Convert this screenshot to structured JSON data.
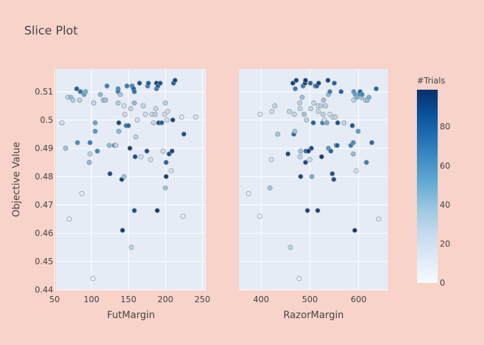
{
  "chart_data": {
    "type": "scatter",
    "title": "Slice Plot",
    "ylabel": "Objective Value",
    "ylim": [
      0.44,
      0.518
    ],
    "yticks": [
      0.44,
      0.45,
      0.46,
      0.47,
      0.48,
      0.49,
      0.5,
      0.51
    ],
    "ytick_labels": [
      "0.44",
      "0.45",
      "0.46",
      "0.47",
      "0.48",
      "0.49",
      "0.5",
      "0.51"
    ],
    "colorbar": {
      "title": "#Trials",
      "range": [
        0,
        99
      ],
      "ticks": [
        0,
        20,
        40,
        60,
        80
      ],
      "tick_labels": [
        "0",
        "20",
        "40",
        "60",
        "80"
      ]
    },
    "panels": [
      {
        "name": "FutMargin",
        "xlabel": "FutMargin",
        "xlim": [
          52,
          255
        ],
        "xticks": [
          50,
          100,
          150,
          200,
          250
        ],
        "xtick_labels": [
          "50",
          "100",
          "150",
          "200",
          "250"
        ],
        "points": [
          [
            60,
            0.499,
            22
          ],
          [
            65,
            0.49,
            40
          ],
          [
            68,
            0.508,
            28
          ],
          [
            70,
            0.465,
            8
          ],
          [
            72,
            0.508,
            42
          ],
          [
            75,
            0.507,
            34
          ],
          [
            80,
            0.511,
            85
          ],
          [
            81,
            0.492,
            65
          ],
          [
            84,
            0.507,
            30
          ],
          [
            85,
            0.51,
            76
          ],
          [
            87,
            0.474,
            10
          ],
          [
            90,
            0.509,
            55
          ],
          [
            92,
            0.51,
            50
          ],
          [
            97,
            0.485,
            45
          ],
          [
            98,
            0.488,
            30
          ],
          [
            98,
            0.492,
            72
          ],
          [
            102,
            0.444,
            6
          ],
          [
            103,
            0.506,
            28
          ],
          [
            105,
            0.496,
            60
          ],
          [
            105,
            0.499,
            55
          ],
          [
            108,
            0.489,
            68
          ],
          [
            112,
            0.509,
            45
          ],
          [
            116,
            0.507,
            42
          ],
          [
            119,
            0.507,
            40
          ],
          [
            121,
            0.512,
            70
          ],
          [
            124,
            0.491,
            44
          ],
          [
            125,
            0.481,
            92
          ],
          [
            131,
            0.491,
            72
          ],
          [
            133,
            0.491,
            30
          ],
          [
            136,
            0.511,
            65
          ],
          [
            136,
            0.51,
            72
          ],
          [
            136,
            0.506,
            35
          ],
          [
            137,
            0.496,
            45
          ],
          [
            137,
            0.499,
            95
          ],
          [
            139,
            0.509,
            38
          ],
          [
            141,
            0.479,
            98
          ],
          [
            142,
            0.461,
            99
          ],
          [
            144,
            0.48,
            40
          ],
          [
            144,
            0.505,
            20
          ],
          [
            145,
            0.502,
            24
          ],
          [
            147,
            0.498,
            78
          ],
          [
            148,
            0.512,
            72
          ],
          [
            150,
            0.498,
            80
          ],
          [
            152,
            0.49,
            97
          ],
          [
            153,
            0.504,
            30
          ],
          [
            154,
            0.455,
            30
          ],
          [
            155,
            0.512,
            68
          ],
          [
            157,
            0.511,
            86
          ],
          [
            158,
            0.51,
            76
          ],
          [
            158,
            0.506,
            44
          ],
          [
            158,
            0.468,
            90
          ],
          [
            159,
            0.487,
            92
          ],
          [
            160,
            0.494,
            30
          ],
          [
            162,
            0.5,
            20
          ],
          [
            165,
            0.513,
            88
          ],
          [
            167,
            0.487,
            20
          ],
          [
            170,
            0.505,
            28
          ],
          [
            173,
            0.502,
            22
          ],
          [
            175,
            0.489,
            90
          ],
          [
            176,
            0.512,
            72
          ],
          [
            177,
            0.513,
            82
          ],
          [
            180,
            0.486,
            20
          ],
          [
            182,
            0.502,
            24
          ],
          [
            184,
            0.499,
            28
          ],
          [
            186,
            0.502,
            32
          ],
          [
            187,
            0.504,
            28
          ],
          [
            188,
            0.511,
            70
          ],
          [
            188,
            0.513,
            99
          ],
          [
            189,
            0.468,
            99
          ],
          [
            190,
            0.512,
            82
          ],
          [
            191,
            0.499,
            90
          ],
          [
            193,
            0.513,
            88
          ],
          [
            195,
            0.499,
            82
          ],
          [
            197,
            0.489,
            22
          ],
          [
            199,
            0.502,
            24
          ],
          [
            200,
            0.506,
            32
          ],
          [
            200,
            0.476,
            40
          ],
          [
            201,
            0.485,
            82
          ],
          [
            201,
            0.48,
            98
          ],
          [
            202,
            0.5,
            20
          ],
          [
            203,
            0.503,
            22
          ],
          [
            205,
            0.488,
            88
          ],
          [
            208,
            0.482,
            20
          ],
          [
            209,
            0.489,
            95
          ],
          [
            210,
            0.5,
            95
          ],
          [
            211,
            0.513,
            82
          ],
          [
            213,
            0.514,
            95
          ],
          [
            222,
            0.501,
            14
          ],
          [
            224,
            0.466,
            12
          ],
          [
            225,
            0.495,
            90
          ],
          [
            241,
            0.501,
            16
          ]
        ]
      },
      {
        "name": "RazorMargin",
        "xlabel": "RazorMargin",
        "xlim": [
          355,
          660
        ],
        "xticks": [
          400,
          500,
          600
        ],
        "xtick_labels": [
          "400",
          "500",
          "600"
        ],
        "points": [
          [
            374,
            0.474,
            10
          ],
          [
            397,
            0.466,
            8
          ],
          [
            398,
            0.502,
            14
          ],
          [
            418,
            0.476,
            40
          ],
          [
            421,
            0.486,
            18
          ],
          [
            422,
            0.503,
            22
          ],
          [
            428,
            0.505,
            30
          ],
          [
            434,
            0.495,
            38
          ],
          [
            455,
            0.488,
            92
          ],
          [
            458,
            0.503,
            28
          ],
          [
            460,
            0.455,
            30
          ],
          [
            465,
            0.513,
            95
          ],
          [
            467,
            0.495,
            82
          ],
          [
            468,
            0.502,
            28
          ],
          [
            469,
            0.496,
            40
          ],
          [
            470,
            0.511,
            72
          ],
          [
            472,
            0.514,
            95
          ],
          [
            478,
            0.444,
            8
          ],
          [
            479,
            0.506,
            32
          ],
          [
            480,
            0.504,
            28
          ],
          [
            480,
            0.487,
            30
          ],
          [
            481,
            0.489,
            40
          ],
          [
            481,
            0.48,
            95
          ],
          [
            484,
            0.508,
            42
          ],
          [
            486,
            0.512,
            72
          ],
          [
            488,
            0.502,
            40
          ],
          [
            490,
            0.513,
            95
          ],
          [
            491,
            0.514,
            98
          ],
          [
            491,
            0.485,
            92
          ],
          [
            492,
            0.489,
            82
          ],
          [
            493,
            0.5,
            30
          ],
          [
            495,
            0.468,
            95
          ],
          [
            497,
            0.489,
            99
          ],
          [
            500,
            0.486,
            24
          ],
          [
            501,
            0.513,
            82
          ],
          [
            502,
            0.504,
            30
          ],
          [
            503,
            0.49,
            92
          ],
          [
            504,
            0.48,
            50
          ],
          [
            507,
            0.499,
            82
          ],
          [
            508,
            0.506,
            28
          ],
          [
            511,
            0.512,
            72
          ],
          [
            514,
            0.512,
            82
          ],
          [
            516,
            0.468,
            95
          ],
          [
            517,
            0.503,
            26
          ],
          [
            517,
            0.505,
            20
          ],
          [
            518,
            0.513,
            95
          ],
          [
            522,
            0.505,
            32
          ],
          [
            524,
            0.487,
            98
          ],
          [
            526,
            0.499,
            70
          ],
          [
            527,
            0.502,
            30
          ],
          [
            528,
            0.507,
            40
          ],
          [
            530,
            0.5,
            22
          ],
          [
            532,
            0.505,
            30
          ],
          [
            535,
            0.499,
            50
          ],
          [
            537,
            0.514,
            95
          ],
          [
            538,
            0.49,
            60
          ],
          [
            538,
            0.509,
            44
          ],
          [
            541,
            0.51,
            70
          ],
          [
            541,
            0.502,
            22
          ],
          [
            543,
            0.489,
            82
          ],
          [
            546,
            0.481,
            90
          ],
          [
            547,
            0.501,
            24
          ],
          [
            549,
            0.479,
            88
          ],
          [
            550,
            0.513,
            82
          ],
          [
            552,
            0.501,
            30
          ],
          [
            554,
            0.491,
            56
          ],
          [
            556,
            0.491,
            82
          ],
          [
            557,
            0.499,
            90
          ],
          [
            564,
            0.51,
            82
          ],
          [
            570,
            0.499,
            30
          ],
          [
            584,
            0.491,
            72
          ],
          [
            587,
            0.498,
            88
          ],
          [
            589,
            0.492,
            65
          ],
          [
            589,
            0.488,
            44
          ],
          [
            590,
            0.51,
            62
          ],
          [
            590,
            0.507,
            30
          ],
          [
            592,
            0.461,
            99
          ],
          [
            593,
            0.509,
            58
          ],
          [
            595,
            0.482,
            22
          ],
          [
            596,
            0.508,
            48
          ],
          [
            599,
            0.496,
            58
          ],
          [
            603,
            0.509,
            70
          ],
          [
            603,
            0.51,
            82
          ],
          [
            605,
            0.508,
            40
          ],
          [
            607,
            0.509,
            66
          ],
          [
            614,
            0.507,
            35
          ],
          [
            616,
            0.485,
            70
          ],
          [
            618,
            0.507,
            40
          ],
          [
            621,
            0.508,
            50
          ],
          [
            627,
            0.492,
            80
          ],
          [
            636,
            0.511,
            80
          ],
          [
            641,
            0.465,
            14
          ]
        ]
      }
    ]
  }
}
